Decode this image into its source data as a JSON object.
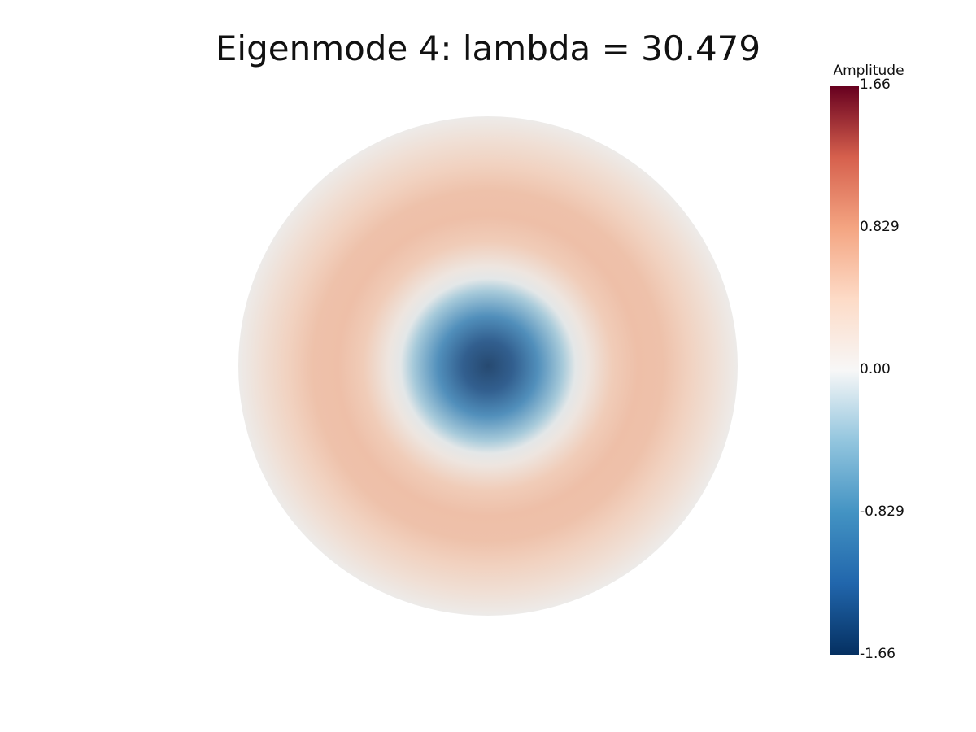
{
  "chart_data": {
    "type": "heatmap",
    "title": "Eigenmode 4: lambda = 30.479",
    "colorbar": {
      "title": "Amplitude",
      "range": [
        -1.66,
        1.66
      ],
      "ticks": [
        {
          "label": "1.66",
          "value": 1.66
        },
        {
          "label": "0.829",
          "value": 0.829
        },
        {
          "label": "0.00",
          "value": 0.0
        },
        {
          "label": "-0.829",
          "value": -0.829
        },
        {
          "label": "-1.66",
          "value": -1.66
        }
      ],
      "colormap_stops": [
        {
          "value": -1.66,
          "color": "#053061"
        },
        {
          "value": -1.245,
          "color": "#2166ac"
        },
        {
          "value": -0.83,
          "color": "#4393c3"
        },
        {
          "value": -0.415,
          "color": "#92c5de"
        },
        {
          "value": 0.0,
          "color": "#f7f7f7"
        },
        {
          "value": 0.415,
          "color": "#fddbc7"
        },
        {
          "value": 0.83,
          "color": "#f4a582"
        },
        {
          "value": 1.245,
          "color": "#d6604d"
        },
        {
          "value": 1.66,
          "color": "#67001f"
        }
      ]
    },
    "field": {
      "domain": "disk",
      "pattern": "radially symmetric mode: negative at center, positive ring, near zero at boundary",
      "radial_profile": [
        {
          "r": 0.0,
          "value": -1.66
        },
        {
          "r": 0.1,
          "value": -1.45
        },
        {
          "r": 0.2,
          "value": -0.95
        },
        {
          "r": 0.3,
          "value": -0.35
        },
        {
          "r": 0.35,
          "value": -0.05
        },
        {
          "r": 0.4,
          "value": 0.12
        },
        {
          "r": 0.5,
          "value": 0.5
        },
        {
          "r": 0.6,
          "value": 0.62
        },
        {
          "r": 0.7,
          "value": 0.6
        },
        {
          "r": 0.8,
          "value": 0.45
        },
        {
          "r": 0.9,
          "value": 0.25
        },
        {
          "r": 1.0,
          "value": 0.02
        }
      ]
    }
  }
}
